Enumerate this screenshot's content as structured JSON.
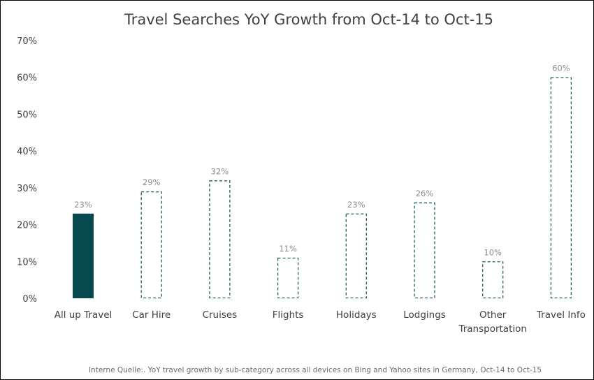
{
  "chart_data": {
    "type": "bar",
    "title": "Travel Searches YoY Growth from Oct-14 to Oct-15",
    "categories": [
      "All up Travel",
      "Car Hire",
      "Cruises",
      "Flights",
      "Holidays",
      "Lodgings",
      "Other Transportation",
      "Travel Info"
    ],
    "category_lines": [
      [
        "All up Travel"
      ],
      [
        "Car Hire"
      ],
      [
        "Cruises"
      ],
      [
        "Flights"
      ],
      [
        "Holidays"
      ],
      [
        "Lodgings"
      ],
      [
        "Other",
        "Transportation"
      ],
      [
        "Travel Info"
      ]
    ],
    "values": [
      23,
      29,
      32,
      11,
      23,
      26,
      10,
      60
    ],
    "value_labels": [
      "23%",
      "29%",
      "32%",
      "11%",
      "23%",
      "26%",
      "10%",
      "60%"
    ],
    "highlighted_category": "All up Travel",
    "y_ticks": [
      0,
      10,
      20,
      30,
      40,
      50,
      60,
      70
    ],
    "y_tick_labels": [
      "0%",
      "10%",
      "20%",
      "30%",
      "40%",
      "50%",
      "60%",
      "70%"
    ],
    "ylim": [
      0,
      70
    ],
    "xlabel": "",
    "ylabel": "",
    "grid": false,
    "legend": "none",
    "colors": {
      "highlight_fill": "#064a4f",
      "outline_dash": "#1f5f63",
      "text": "#404040",
      "data_label": "#8c8c8c"
    },
    "source_note": "Interne Quelle:. YoY travel growth by sub-category across all devices on Bing and Yahoo sites in Germany, Oct-14 to Oct-15"
  }
}
